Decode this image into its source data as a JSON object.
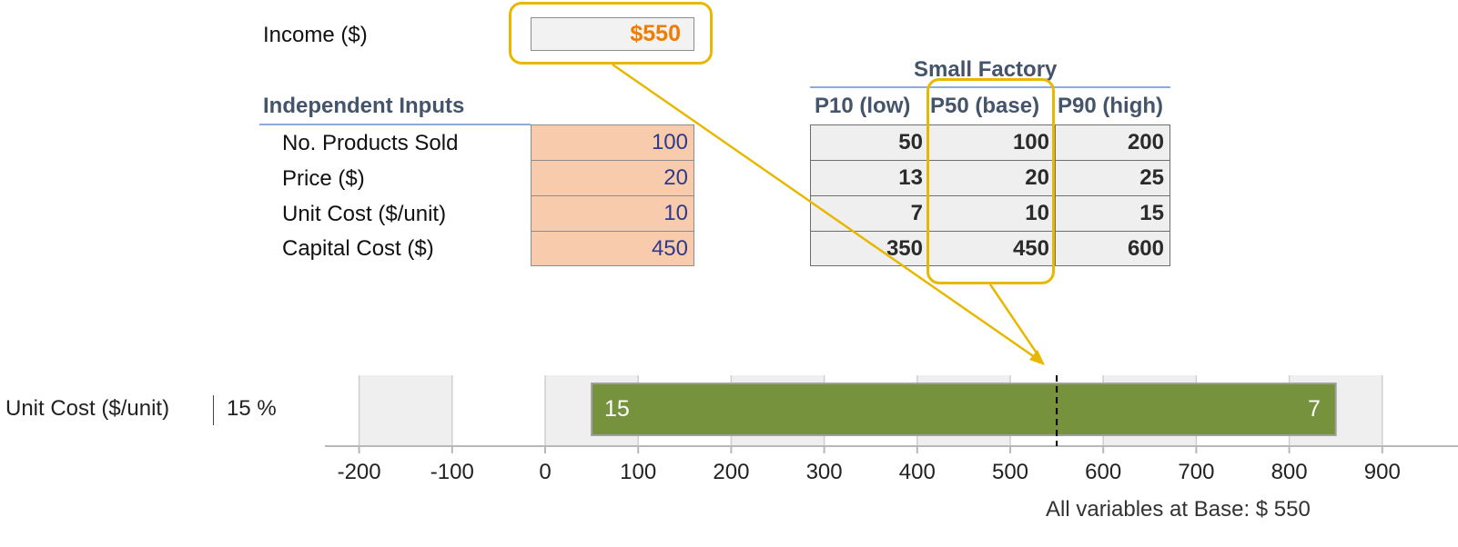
{
  "income": {
    "label": "Income ($)",
    "value": "$550"
  },
  "inputs": {
    "heading": "Independent Inputs",
    "rows": [
      {
        "label": "No. Products Sold",
        "value": "100"
      },
      {
        "label": "Price ($)",
        "value": "20"
      },
      {
        "label": "Unit Cost ($/unit)",
        "value": "10"
      },
      {
        "label": "Capital Cost ($)",
        "value": "450"
      }
    ]
  },
  "factory": {
    "title": "Small Factory",
    "columns": [
      "P10 (low)",
      "P50 (base)",
      "P90 (high)"
    ],
    "rows": [
      [
        "50",
        "100",
        "200"
      ],
      [
        "13",
        "20",
        "25"
      ],
      [
        "7",
        "10",
        "15"
      ],
      [
        "350",
        "450",
        "600"
      ]
    ]
  },
  "colors": {
    "accent": "#e8b800",
    "income_value": "#f07c00",
    "input_fill": "#f8cbad",
    "header_text": "#44546a",
    "bar_fill": "#76923c"
  },
  "chart_data": {
    "type": "bar",
    "orientation": "horizontal",
    "categories": [
      "Unit Cost ($/unit)"
    ],
    "category_percent": [
      "15 %"
    ],
    "series": [
      {
        "values": [
          [
            50,
            850
          ]
        ],
        "left_label": "15",
        "right_label": "7"
      }
    ],
    "base_value": 550,
    "xlim": [
      -250,
      950
    ],
    "xticks": [
      -200,
      -100,
      0,
      100,
      200,
      300,
      400,
      500,
      600,
      700,
      800,
      900
    ],
    "xtick_labels": [
      "-200",
      "-100",
      "0",
      "100",
      "200",
      "300",
      "400",
      "500",
      "600",
      "700",
      "800",
      "900"
    ],
    "base_caption": "All variables at Base: $ 550",
    "grid": true
  }
}
